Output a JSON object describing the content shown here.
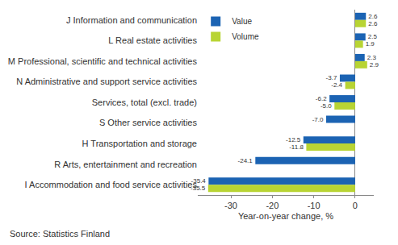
{
  "chart_data": {
    "type": "bar",
    "orientation": "horizontal",
    "categories": [
      "J Information and communication",
      "L Real estate activities",
      "M Professional, scientific and technical activities",
      "N Administrative and support service activities",
      "Services, total (excl. trade)",
      "S Other service activities",
      "H Transportation and storage",
      "R Arts, entertainment and recreation",
      "I Accommodation and food service activities"
    ],
    "series": [
      {
        "name": "Value",
        "color": "#1b63b3",
        "values": [
          2.6,
          2.5,
          2.3,
          -3.7,
          -6.2,
          -7.0,
          -12.5,
          -24.1,
          -35.4
        ],
        "value_labels": [
          "2.6",
          "2.5",
          "2.3",
          "-3.7",
          "-6.2",
          "-7.0",
          "-12.5",
          "-24.1",
          "-35.4"
        ]
      },
      {
        "name": "Volume",
        "color": "#b8d433",
        "values": [
          2.6,
          1.9,
          2.9,
          -2.4,
          -5.0,
          null,
          -11.8,
          null,
          -35.5
        ],
        "value_labels": [
          "2.6",
          "1.9",
          "2.9",
          "-2.4",
          "-5.0",
          null,
          "-11.8",
          null,
          "-35.5"
        ]
      }
    ],
    "x_label": "Year-on-year change, %",
    "xlim": [
      -38,
      4.5
    ],
    "xticks": [
      -30,
      -20,
      -10,
      0
    ],
    "grid": false,
    "legend": "upper left",
    "data_labels": true,
    "source": "Source: Statistics Finland"
  }
}
